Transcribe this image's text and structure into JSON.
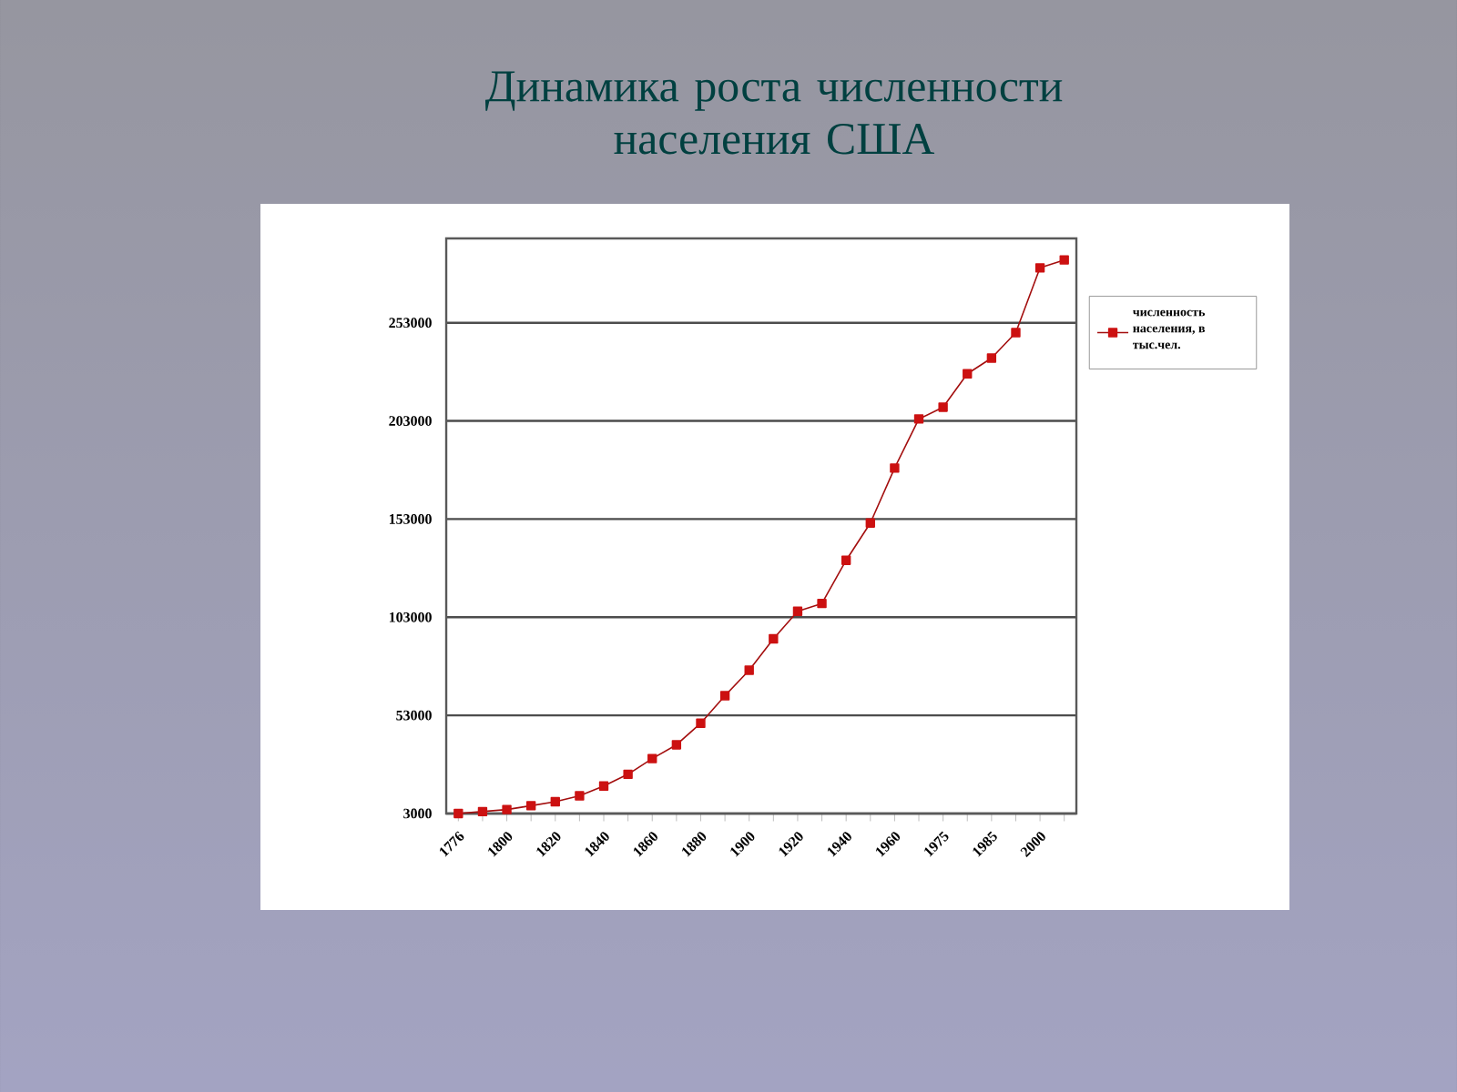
{
  "chart_data": {
    "type": "line",
    "title": "Динамика роста численности населения США",
    "categories": [
      "1776",
      null,
      "1800",
      null,
      "1820",
      null,
      "1840",
      null,
      "1860",
      null,
      "1880",
      null,
      "1900",
      null,
      "1920",
      null,
      "1940",
      null,
      "1960",
      null,
      "1975",
      null,
      "1985",
      null,
      "2000",
      null
    ],
    "series": [
      {
        "name": "численность населения, в тыс.чел.",
        "color": "#cc1111",
        "values": [
          3000,
          4000,
          5000,
          7000,
          9000,
          12000,
          17000,
          23000,
          31000,
          38000,
          49000,
          63000,
          76000,
          92000,
          106000,
          110000,
          132000,
          151000,
          179000,
          204000,
          210000,
          227000,
          235000,
          248000,
          281000,
          285000
        ]
      }
    ],
    "ylim": [
      3000,
      296000
    ],
    "yticks": [
      3000,
      53000,
      103000,
      153000,
      203000,
      253000
    ],
    "grid": "y",
    "legend": "right",
    "marker": "square",
    "line_style": "solid"
  }
}
